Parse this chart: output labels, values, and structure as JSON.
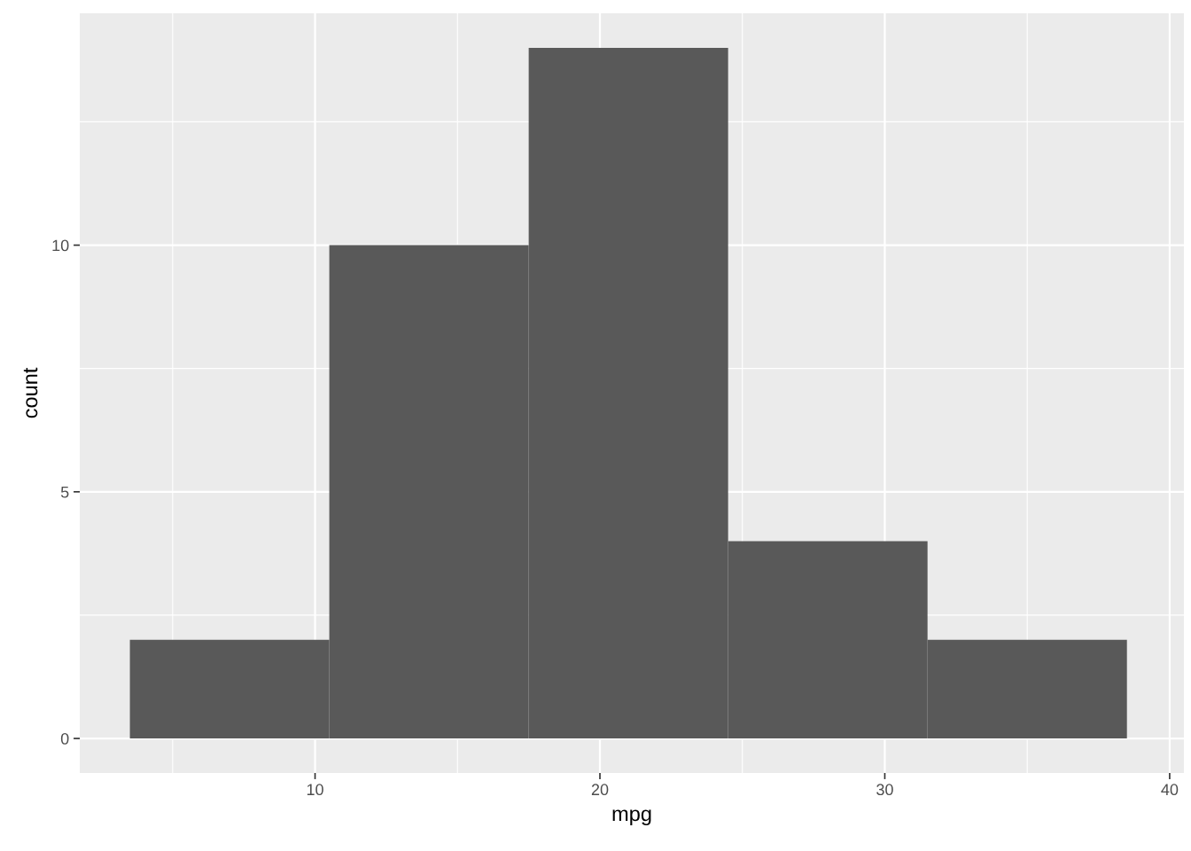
{
  "chart_data": {
    "type": "histogram",
    "xlabel": "mpg",
    "ylabel": "count",
    "bins": [
      3.5,
      10.5,
      17.5,
      24.5,
      31.5,
      38.5
    ],
    "values": [
      2,
      10,
      14,
      4,
      2
    ],
    "color": "#595959",
    "xlim": [
      1.74,
      40.5
    ],
    "xticks": [
      10,
      20,
      30,
      40
    ],
    "ylim": [
      -0.7,
      14.7
    ],
    "yticks": [
      0,
      5,
      10
    ],
    "grid": true
  }
}
